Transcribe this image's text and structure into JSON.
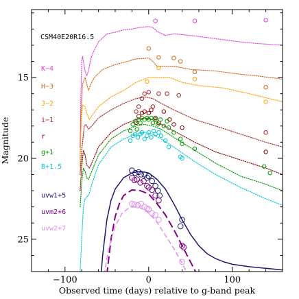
{
  "chart_data": {
    "type": "scatter",
    "title": "CSM40E20R16.5",
    "xlabel": "Observed time (days) relative to g-band peak",
    "ylabel": "Magnitude",
    "xlim": [
      -140,
      160
    ],
    "ylim": [
      27.0,
      10.8
    ],
    "y_inverted": true,
    "x_ticks": [
      -100,
      0,
      100
    ],
    "x_tick_labels": [
      "−100",
      "0",
      "100"
    ],
    "y_ticks": [
      15,
      20,
      25
    ],
    "y_tick_labels": [
      "15",
      "20",
      "25"
    ],
    "grid": false,
    "series": [
      {
        "name": "K−4",
        "color": "#e040e0",
        "model": [
          [
            -82,
            19.3
          ],
          [
            -81,
            16.0
          ],
          [
            -80,
            14.0
          ],
          [
            -79,
            13.7
          ],
          [
            -78,
            14.0
          ],
          [
            -76,
            14.6
          ],
          [
            -74,
            14.9
          ],
          [
            -72,
            14.6
          ],
          [
            -69,
            13.8
          ],
          [
            -65,
            13.3
          ],
          [
            -60,
            12.8
          ],
          [
            -50,
            12.3
          ],
          [
            -40,
            12.2
          ],
          [
            -30,
            12.05
          ],
          [
            -20,
            12.0
          ],
          [
            -10,
            11.9
          ],
          [
            0,
            11.85
          ],
          [
            5,
            11.9
          ],
          [
            10,
            12.15
          ],
          [
            20,
            12.4
          ],
          [
            30,
            12.3
          ],
          [
            50,
            12.4
          ],
          [
            80,
            12.6
          ],
          [
            110,
            12.8
          ],
          [
            130,
            12.9
          ],
          [
            160,
            13.0
          ]
        ],
        "obs": [
          [
            8,
            11.5
          ],
          [
            55,
            11.5
          ],
          [
            140,
            11.45
          ]
        ]
      },
      {
        "name": "H−3",
        "color": "#d2691e",
        "model": [
          [
            -82,
            20
          ],
          [
            -81,
            17.5
          ],
          [
            -79,
            15.4
          ],
          [
            -76,
            15.0
          ],
          [
            -74,
            15.4
          ],
          [
            -72,
            15.8
          ],
          [
            -69,
            15.4
          ],
          [
            -65,
            15.0
          ],
          [
            -55,
            14.5
          ],
          [
            -40,
            14.2
          ],
          [
            -25,
            14.0
          ],
          [
            -15,
            13.85
          ],
          [
            0,
            13.8
          ],
          [
            5,
            14.0
          ],
          [
            10,
            14.3
          ],
          [
            20,
            14.3
          ],
          [
            30,
            14.3
          ],
          [
            50,
            14.5
          ],
          [
            80,
            14.6
          ],
          [
            110,
            14.8
          ],
          [
            130,
            14.9
          ],
          [
            160,
            15.1
          ]
        ],
        "obs": [
          [
            0,
            13.2
          ],
          [
            12,
            13.75
          ],
          [
            30,
            13.8
          ],
          [
            38,
            14.0
          ],
          [
            55,
            14.65
          ],
          [
            140,
            15.6
          ]
        ]
      },
      {
        "name": "J−2",
        "color": "#ff9f00",
        "model": [
          [
            -82,
            20.5
          ],
          [
            -81,
            18.3
          ],
          [
            -79,
            16.7
          ],
          [
            -76,
            16.8
          ],
          [
            -74,
            17.2
          ],
          [
            -71,
            17.6
          ],
          [
            -67,
            17.3
          ],
          [
            -60,
            16.8
          ],
          [
            -45,
            16.2
          ],
          [
            -30,
            15.8
          ],
          [
            -15,
            15.3
          ],
          [
            0,
            15.0
          ],
          [
            10,
            15.0
          ],
          [
            25,
            15.0
          ],
          [
            40,
            15.3
          ],
          [
            60,
            15.5
          ],
          [
            90,
            15.65
          ],
          [
            120,
            16.0
          ],
          [
            160,
            16.5
          ]
        ],
        "obs": [
          [
            -2,
            15.25
          ],
          [
            12,
            14.4
          ],
          [
            55,
            15.1
          ],
          [
            140,
            16.5
          ]
        ]
      },
      {
        "name": "i−1",
        "color": "#a52a2a",
        "model": [
          [
            -82,
            21
          ],
          [
            -80,
            19.5
          ],
          [
            -77,
            18.0
          ],
          [
            -75,
            17.9
          ],
          [
            -72,
            18.2
          ],
          [
            -68,
            18.0
          ],
          [
            -60,
            17.5
          ],
          [
            -45,
            17.0
          ],
          [
            -30,
            16.6
          ],
          [
            -15,
            16.3
          ],
          [
            -5,
            16.2
          ],
          [
            5,
            16.3
          ],
          [
            15,
            16.6
          ],
          [
            30,
            17.0
          ],
          [
            55,
            17.6
          ],
          [
            80,
            18.0
          ],
          [
            110,
            18.5
          ],
          [
            140,
            19.0
          ],
          [
            160,
            19.3
          ]
        ],
        "obs": [
          [
            -15,
            17.1
          ],
          [
            -12,
            16.8
          ],
          [
            -8,
            16.3
          ],
          [
            -5,
            16.0
          ],
          [
            0,
            15.9
          ],
          [
            5,
            16.8
          ],
          [
            12,
            16.0
          ],
          [
            22,
            16.0
          ],
          [
            36,
            16.1
          ],
          [
            140,
            18.4
          ]
        ]
      },
      {
        "name": "r",
        "color": "#8b0000",
        "model": [
          [
            -82,
            22
          ],
          [
            -80,
            20.5
          ],
          [
            -78,
            19.5
          ],
          [
            -76,
            19.8
          ],
          [
            -74,
            20.4
          ],
          [
            -71,
            20.6
          ],
          [
            -68,
            20.3
          ],
          [
            -60,
            19.3
          ],
          [
            -45,
            18.4
          ],
          [
            -30,
            17.9
          ],
          [
            -15,
            17.6
          ],
          [
            -5,
            17.5
          ],
          [
            5,
            17.6
          ],
          [
            15,
            17.9
          ],
          [
            30,
            18.3
          ],
          [
            55,
            19.0
          ],
          [
            80,
            19.6
          ],
          [
            110,
            20.1
          ],
          [
            140,
            20.6
          ],
          [
            160,
            21.0
          ]
        ],
        "obs": [
          [
            -15,
            17.8
          ],
          [
            -12,
            17.4
          ],
          [
            -8,
            17.2
          ],
          [
            -5,
            17.1
          ],
          [
            0,
            17.2
          ],
          [
            3,
            17.0
          ],
          [
            8,
            17.5
          ],
          [
            12,
            17.8
          ],
          [
            18,
            17.1
          ],
          [
            25,
            17.6
          ],
          [
            30,
            17.9
          ],
          [
            40,
            18.1
          ],
          [
            140,
            19.6
          ]
        ]
      },
      {
        "name": "g+1",
        "color": "#009900",
        "model": [
          [
            -82,
            23
          ],
          [
            -80,
            21.5
          ],
          [
            -78,
            20.6
          ],
          [
            -76,
            20.8
          ],
          [
            -74,
            21.2
          ],
          [
            -72,
            21.3
          ],
          [
            -68,
            20.8
          ],
          [
            -60,
            19.8
          ],
          [
            -45,
            18.8
          ],
          [
            -30,
            18.3
          ],
          [
            -15,
            18.0
          ],
          [
            -5,
            17.9
          ],
          [
            5,
            18.0
          ],
          [
            15,
            18.2
          ],
          [
            30,
            18.7
          ],
          [
            55,
            19.5
          ],
          [
            80,
            20.3
          ],
          [
            110,
            21.1
          ],
          [
            140,
            21.6
          ],
          [
            160,
            22.0
          ]
        ],
        "obs": [
          [
            -22,
            18.3
          ],
          [
            -19,
            17.9
          ],
          [
            -16,
            17.7
          ],
          [
            -14,
            18.2
          ],
          [
            -12,
            17.6
          ],
          [
            -10,
            17.8
          ],
          [
            -8,
            17.5
          ],
          [
            -5,
            17.6
          ],
          [
            -2,
            17.5
          ],
          [
            0,
            17.6
          ],
          [
            3,
            17.5
          ],
          [
            5,
            17.8
          ],
          [
            8,
            17.6
          ],
          [
            11,
            17.9
          ],
          [
            14,
            17.6
          ],
          [
            18,
            18.0
          ],
          [
            22,
            17.7
          ],
          [
            24,
            18.1
          ],
          [
            30,
            18.4
          ],
          [
            38,
            18.8
          ],
          [
            40,
            19.1
          ],
          [
            55,
            19.4
          ],
          [
            138,
            20.5
          ],
          [
            145,
            20.9
          ]
        ]
      },
      {
        "name": "B+1.5",
        "color": "#00c8d2",
        "model": [
          [
            -82,
            27
          ],
          [
            -80,
            25
          ],
          [
            -78,
            23.0
          ],
          [
            -76,
            22.5
          ],
          [
            -74,
            22.4
          ],
          [
            -71,
            22.2
          ],
          [
            -68,
            21.6
          ],
          [
            -60,
            20.4
          ],
          [
            -45,
            19.3
          ],
          [
            -30,
            18.8
          ],
          [
            -15,
            18.5
          ],
          [
            -5,
            18.4
          ],
          [
            5,
            18.5
          ],
          [
            15,
            18.8
          ],
          [
            30,
            19.3
          ],
          [
            55,
            20.2
          ],
          [
            80,
            21.0
          ],
          [
            110,
            21.8
          ],
          [
            140,
            22.5
          ],
          [
            160,
            22.9
          ]
        ],
        "obs": [
          [
            -22,
            18.9
          ],
          [
            -19,
            18.6
          ],
          [
            -16,
            18.5
          ],
          [
            -13,
            18.7
          ],
          [
            -10,
            18.5
          ],
          [
            -8,
            18.4
          ],
          [
            -5,
            18.8
          ],
          [
            -2,
            18.6
          ],
          [
            0,
            18.4
          ],
          [
            3,
            18.7
          ],
          [
            6,
            18.3
          ],
          [
            8,
            18.5
          ],
          [
            12,
            18.4
          ],
          [
            15,
            18.6
          ],
          [
            20,
            18.9
          ],
          [
            24,
            19.3
          ],
          [
            38,
            19.9
          ],
          [
            40,
            20.0
          ]
        ]
      },
      {
        "name": "uvw1+5",
        "color": "#191970",
        "model": [
          [
            -57,
            27.2
          ],
          [
            -55,
            26.0
          ],
          [
            -50,
            23.8
          ],
          [
            -45,
            22.6
          ],
          [
            -40,
            21.9
          ],
          [
            -30,
            21.2
          ],
          [
            -20,
            20.9
          ],
          [
            -10,
            20.8
          ],
          [
            0,
            20.9
          ],
          [
            10,
            21.3
          ],
          [
            20,
            21.9
          ],
          [
            30,
            22.8
          ],
          [
            40,
            23.8
          ],
          [
            50,
            24.7
          ],
          [
            60,
            25.4
          ],
          [
            70,
            25.9
          ],
          [
            80,
            26.2
          ],
          [
            90,
            26.4
          ],
          [
            100,
            26.55
          ],
          [
            120,
            26.7
          ],
          [
            140,
            26.8
          ],
          [
            160,
            26.9
          ]
        ],
        "obs": [
          [
            -20,
            20.75
          ],
          [
            -16,
            20.9
          ],
          [
            -12,
            20.85
          ],
          [
            -9,
            21.0
          ],
          [
            -5,
            21.0
          ],
          [
            -2,
            21.2
          ],
          [
            0,
            21.1
          ],
          [
            4,
            21.4
          ],
          [
            8,
            21.7
          ],
          [
            11,
            22.0
          ],
          [
            13,
            22.3
          ],
          [
            38,
            24.2
          ],
          [
            40,
            23.8
          ]
        ]
      },
      {
        "name": "uvm2+6",
        "color": "#800080",
        "model": [
          [
            -50,
            27.2
          ],
          [
            -45,
            25.0
          ],
          [
            -40,
            23.6
          ],
          [
            -35,
            22.8
          ],
          [
            -30,
            22.3
          ],
          [
            -20,
            21.95
          ],
          [
            -10,
            22.0
          ],
          [
            0,
            22.2
          ],
          [
            10,
            22.8
          ],
          [
            20,
            23.5
          ],
          [
            30,
            24.4
          ],
          [
            40,
            25.4
          ],
          [
            50,
            26.4
          ],
          [
            58,
            27.2
          ]
        ],
        "obs": [
          [
            -20,
            21.2
          ],
          [
            -17,
            21.35
          ],
          [
            -14,
            21.3
          ],
          [
            -10,
            21.5
          ],
          [
            -6,
            21.4
          ],
          [
            -2,
            21.7
          ],
          [
            0,
            21.8
          ],
          [
            4,
            21.95
          ],
          [
            8,
            22.3
          ],
          [
            12,
            22.6
          ],
          [
            40,
            25.4
          ],
          [
            42,
            25.5
          ]
        ]
      },
      {
        "name": "uvw2+7",
        "color": "#e08ee8",
        "model": [
          [
            -53,
            27.2
          ],
          [
            -48,
            25.6
          ],
          [
            -40,
            24.2
          ],
          [
            -32,
            23.4
          ],
          [
            -22,
            23.0
          ],
          [
            -12,
            23.0
          ],
          [
            -2,
            23.3
          ],
          [
            8,
            23.8
          ],
          [
            18,
            24.6
          ],
          [
            28,
            25.4
          ],
          [
            38,
            26.3
          ],
          [
            45,
            27.0
          ]
        ],
        "obs": [
          [
            -20,
            22.8
          ],
          [
            -17,
            22.85
          ],
          [
            -13,
            22.9
          ],
          [
            -9,
            22.8
          ],
          [
            -5,
            23.0
          ],
          [
            -2,
            23.1
          ],
          [
            0,
            23.15
          ],
          [
            4,
            23.4
          ],
          [
            8,
            23.5
          ],
          [
            12,
            23.8
          ],
          [
            40,
            26.4
          ]
        ]
      }
    ]
  }
}
